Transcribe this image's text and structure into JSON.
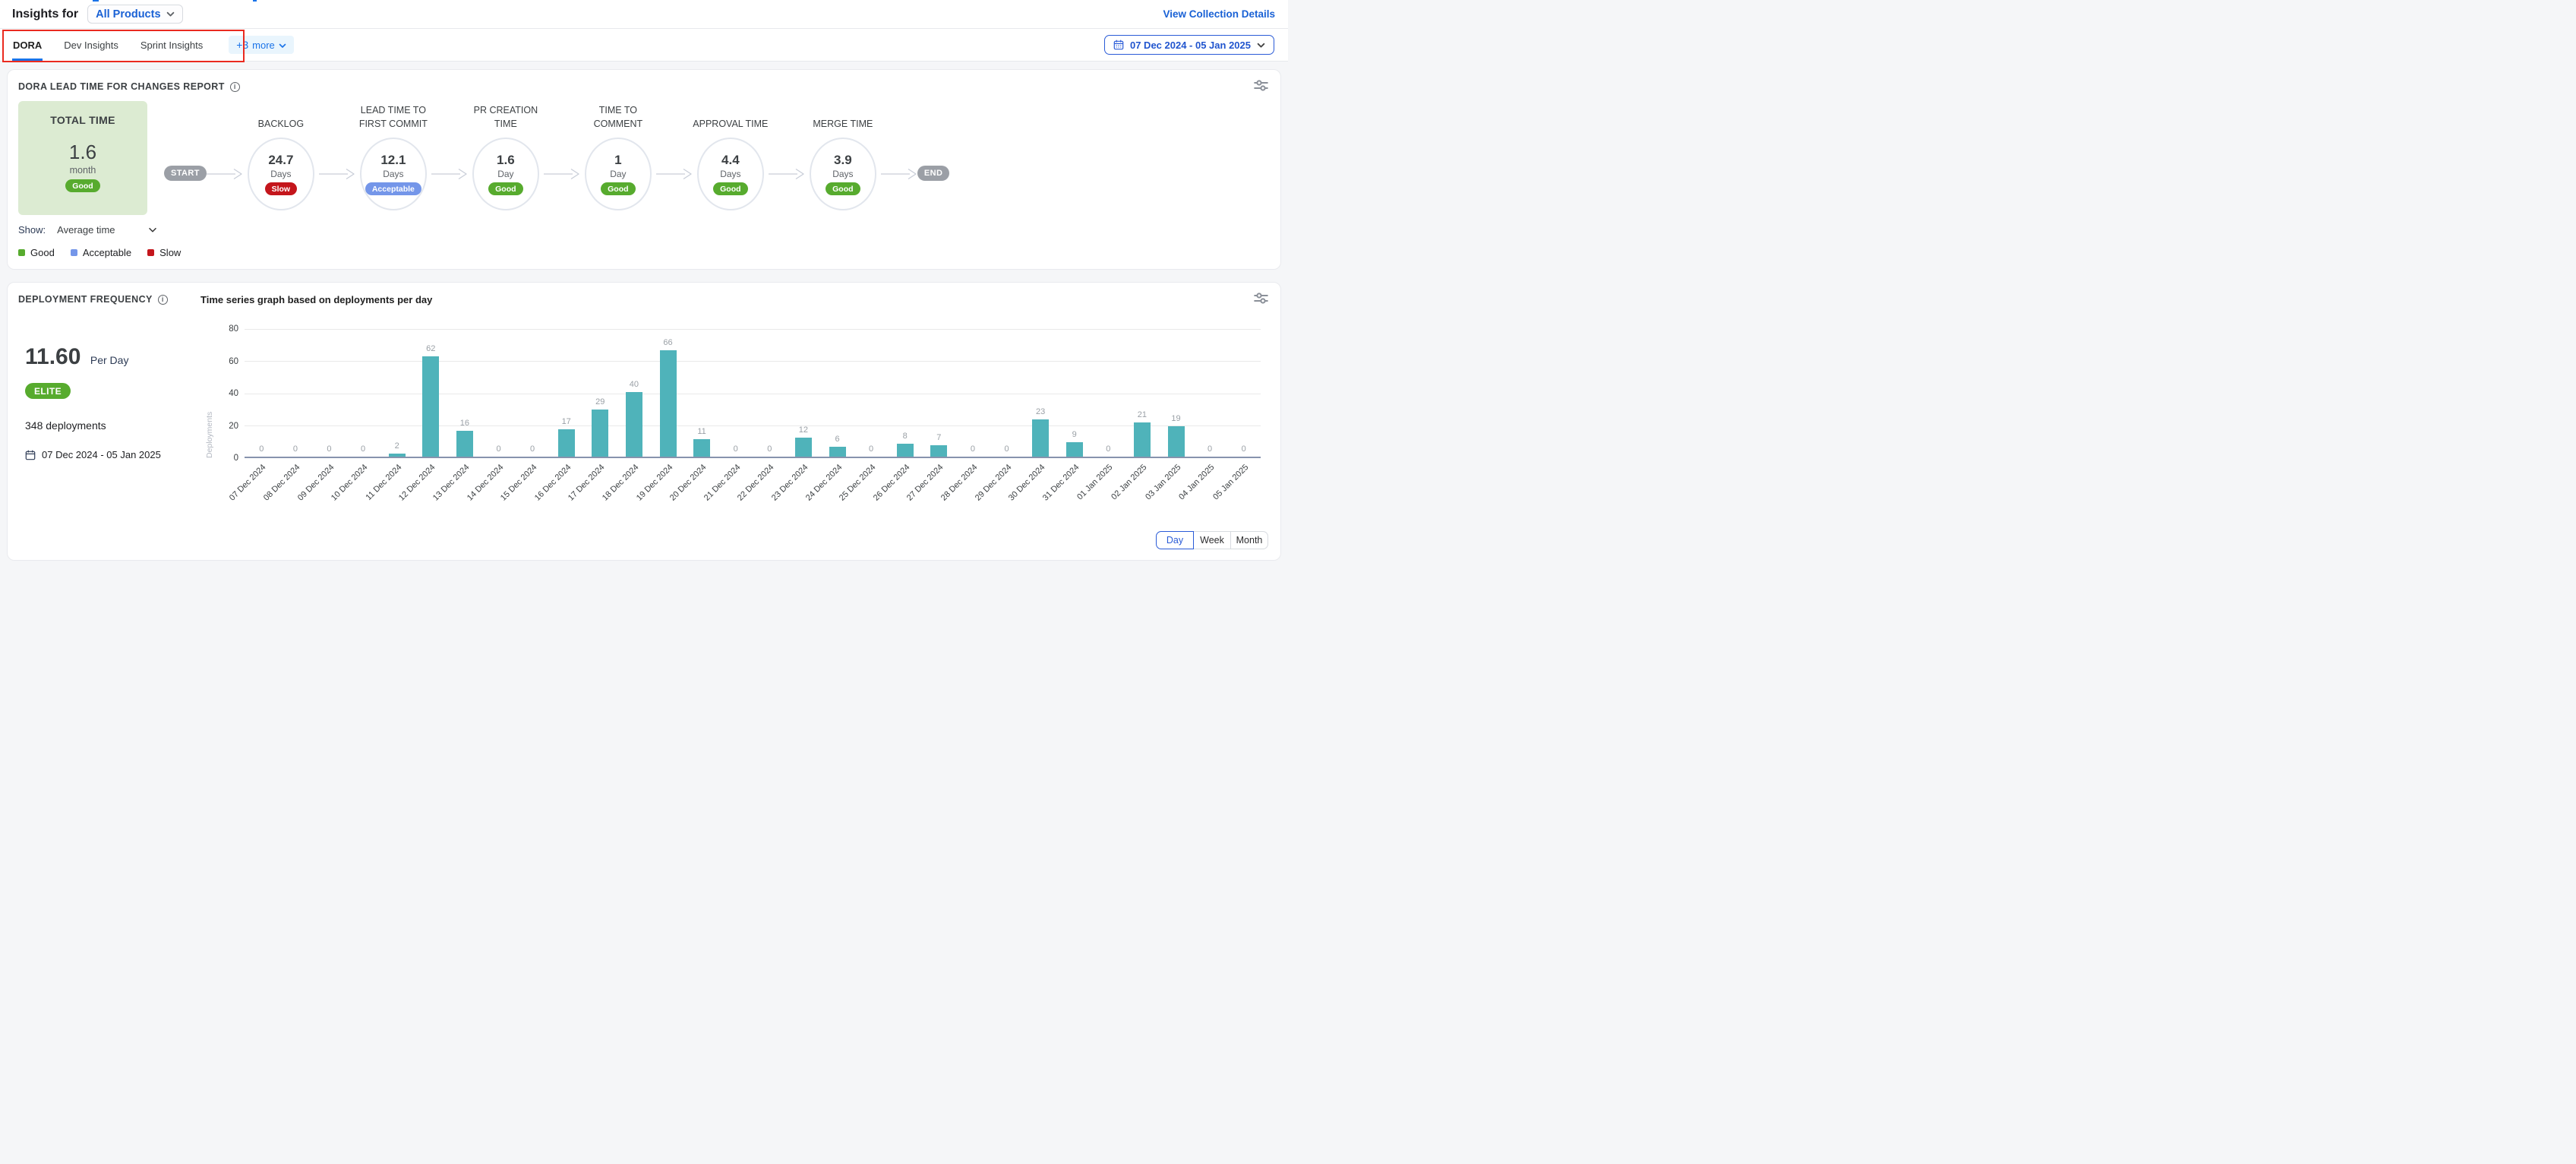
{
  "header": {
    "title_prefix": "Insights for",
    "product_selector": {
      "value": "All Products"
    },
    "view_collection_details": "View Collection Details",
    "date_range": "07 Dec 2024 - 05 Jan 2025"
  },
  "tabs": {
    "items": [
      "DORA",
      "Dev Insights",
      "Sprint Insights"
    ],
    "active": "DORA",
    "more": {
      "count_label": "+3",
      "text": "more"
    }
  },
  "lead_time": {
    "title": "DORA LEAD TIME FOR CHANGES REPORT",
    "total": {
      "label": "TOTAL TIME",
      "value": "1.6",
      "unit": "month",
      "badge": "Good"
    },
    "start_label": "START",
    "end_label": "END",
    "stages": [
      {
        "label": "BACKLOG",
        "value": "24.7",
        "unit": "Days",
        "badge": "Slow"
      },
      {
        "label": "LEAD TIME TO FIRST COMMIT",
        "value": "12.1",
        "unit": "Days",
        "badge": "Acceptable"
      },
      {
        "label": "PR CREATION TIME",
        "value": "1.6",
        "unit": "Day",
        "badge": "Good"
      },
      {
        "label": "TIME TO COMMENT",
        "value": "1",
        "unit": "Day",
        "badge": "Good"
      },
      {
        "label": "APPROVAL TIME",
        "value": "4.4",
        "unit": "Days",
        "badge": "Good"
      },
      {
        "label": "MERGE TIME",
        "value": "3.9",
        "unit": "Days",
        "badge": "Good"
      }
    ],
    "show_label": "Show:",
    "show_value": "Average time",
    "legend": [
      {
        "label": "Good",
        "color": "#57ab2e"
      },
      {
        "label": "Acceptable",
        "color": "#7496e9"
      },
      {
        "label": "Slow",
        "color": "#c4161c"
      }
    ]
  },
  "deployment": {
    "title": "DEPLOYMENT FREQUENCY",
    "rate": "11.60",
    "rate_unit": "Per Day",
    "badge": "ELITE",
    "deployments": "348 deployments",
    "date_range": "07 Dec 2024 - 05 Jan 2025",
    "toggle": {
      "options": [
        "Day",
        "Week",
        "Month"
      ],
      "active": "Day"
    }
  },
  "chart_data": {
    "type": "bar",
    "title": "Time series graph based on deployments per day",
    "categories": [
      "07 Dec 2024",
      "08 Dec 2024",
      "09 Dec 2024",
      "10 Dec 2024",
      "11 Dec 2024",
      "12 Dec 2024",
      "13 Dec 2024",
      "14 Dec 2024",
      "15 Dec 2024",
      "16 Dec 2024",
      "17 Dec 2024",
      "18 Dec 2024",
      "19 Dec 2024",
      "20 Dec 2024",
      "21 Dec 2024",
      "22 Dec 2024",
      "23 Dec 2024",
      "24 Dec 2024",
      "25 Dec 2024",
      "26 Dec 2024",
      "27 Dec 2024",
      "28 Dec 2024",
      "29 Dec 2024",
      "30 Dec 2024",
      "31 Dec 2024",
      "01 Jan 2025",
      "02 Jan 2025",
      "03 Jan 2025",
      "04 Jan 2025",
      "05 Jan 2025"
    ],
    "values": [
      0,
      0,
      0,
      0,
      2,
      62,
      16,
      0,
      0,
      17,
      29,
      40,
      66,
      11,
      0,
      0,
      12,
      6,
      0,
      8,
      7,
      0,
      0,
      23,
      9,
      0,
      21,
      19,
      0,
      0
    ],
    "xlabel": "",
    "ylabel": "Deployments",
    "yticks": [
      0,
      20,
      40,
      60,
      80
    ],
    "ylim": [
      0,
      80
    ],
    "bar_color": "#4fb3ba",
    "grid": "horizontal",
    "value_labels": true,
    "legend_position": "none"
  },
  "badge_colors": {
    "Good": "#57ab2e",
    "Acceptable": "#7496e9",
    "Slow": "#c4161c",
    "ELITE": "#57ab2e"
  }
}
